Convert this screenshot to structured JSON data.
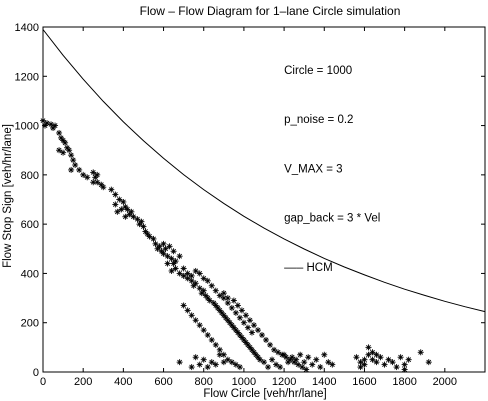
{
  "chart_data": {
    "type": "scatter",
    "title": "Flow – Flow Diagram for 1–lane Circle simulation",
    "xlabel": "Flow Circle [veh/hr/lane]",
    "ylabel": "Flow Stop Sign [veh/hr/lane]",
    "xlim": [
      0,
      2200
    ],
    "ylim": [
      0,
      1400
    ],
    "xticks": [
      0,
      200,
      400,
      600,
      800,
      1000,
      1200,
      1400,
      1600,
      1800,
      2000
    ],
    "yticks": [
      0,
      200,
      400,
      600,
      800,
      1000,
      1200,
      1400
    ],
    "grid": false,
    "annotations": [
      {
        "text": "Circle  = 1000",
        "x": 1200,
        "y": 1210
      },
      {
        "text": "p_noise = 0.2",
        "x": 1200,
        "y": 1010
      },
      {
        "text": "V_MAX   = 3",
        "x": 1200,
        "y": 810
      },
      {
        "text": "gap_back = 3 * Vel",
        "x": 1200,
        "y": 610
      },
      {
        "text": "––– HCM",
        "x": 1200,
        "y": 410
      }
    ],
    "series": [
      {
        "style": "curve",
        "comment_free": true,
        "x": [
          0,
          100,
          200,
          300,
          400,
          500,
          600,
          700,
          800,
          900,
          1000,
          1100,
          1200,
          1300,
          1400,
          1500,
          1600,
          1700,
          1800,
          1900,
          2000,
          2100,
          2200
        ],
        "y": [
          1390,
          1285,
          1188,
          1098,
          1015,
          938,
          867,
          801,
          740,
          684,
          632,
          584,
          540,
          499,
          461,
          426,
          394,
          364,
          336,
          311,
          287,
          265,
          245
        ]
      },
      {
        "style": "markers",
        "points": [
          [
            0,
            1020
          ],
          [
            10,
            1000
          ],
          [
            20,
            1010
          ],
          [
            40,
            1005
          ],
          [
            50,
            990
          ],
          [
            60,
            1000
          ],
          [
            80,
            970
          ],
          [
            90,
            950
          ],
          [
            100,
            940
          ],
          [
            110,
            930
          ],
          [
            120,
            910
          ],
          [
            80,
            900
          ],
          [
            100,
            890
          ],
          [
            130,
            900
          ],
          [
            140,
            880
          ],
          [
            150,
            860
          ],
          [
            160,
            840
          ],
          [
            140,
            820
          ],
          [
            180,
            820
          ],
          [
            200,
            800
          ],
          [
            220,
            790
          ],
          [
            250,
            810
          ],
          [
            260,
            790
          ],
          [
            270,
            770
          ],
          [
            290,
            760
          ],
          [
            300,
            750
          ],
          [
            250,
            770
          ],
          [
            270,
            800
          ],
          [
            340,
            740
          ],
          [
            360,
            720
          ],
          [
            380,
            700
          ],
          [
            400,
            690
          ],
          [
            410,
            670
          ],
          [
            420,
            660
          ],
          [
            430,
            640
          ],
          [
            450,
            630
          ],
          [
            470,
            620
          ],
          [
            480,
            600
          ],
          [
            410,
            630
          ],
          [
            440,
            650
          ],
          [
            360,
            680
          ],
          [
            370,
            650
          ],
          [
            390,
            660
          ],
          [
            490,
            610
          ],
          [
            500,
            590
          ],
          [
            510,
            570
          ],
          [
            520,
            560
          ],
          [
            530,
            550
          ],
          [
            550,
            540
          ],
          [
            560,
            520
          ],
          [
            570,
            500
          ],
          [
            580,
            510
          ],
          [
            590,
            490
          ],
          [
            600,
            480
          ],
          [
            620,
            470
          ],
          [
            640,
            460
          ],
          [
            650,
            440
          ],
          [
            660,
            420
          ],
          [
            600,
            520
          ],
          [
            610,
            500
          ],
          [
            630,
            510
          ],
          [
            650,
            490
          ],
          [
            680,
            470
          ],
          [
            620,
            440
          ],
          [
            640,
            410
          ],
          [
            660,
            450
          ],
          [
            680,
            400
          ],
          [
            700,
            390
          ],
          [
            720,
            380
          ],
          [
            740,
            370
          ],
          [
            750,
            350
          ],
          [
            760,
            360
          ],
          [
            780,
            340
          ],
          [
            790,
            320
          ],
          [
            800,
            330
          ],
          [
            810,
            310
          ],
          [
            820,
            300
          ],
          [
            830,
            290
          ],
          [
            850,
            280
          ],
          [
            860,
            270
          ],
          [
            870,
            260
          ],
          [
            880,
            250
          ],
          [
            890,
            240
          ],
          [
            900,
            230
          ],
          [
            910,
            220
          ],
          [
            920,
            210
          ],
          [
            930,
            200
          ],
          [
            940,
            190
          ],
          [
            950,
            180
          ],
          [
            960,
            170
          ],
          [
            970,
            160
          ],
          [
            980,
            150
          ],
          [
            990,
            140
          ],
          [
            1000,
            130
          ],
          [
            1010,
            120
          ],
          [
            1020,
            110
          ],
          [
            1030,
            100
          ],
          [
            1040,
            90
          ],
          [
            1050,
            80
          ],
          [
            1060,
            70
          ],
          [
            1070,
            60
          ],
          [
            1080,
            50
          ],
          [
            760,
            410
          ],
          [
            780,
            400
          ],
          [
            800,
            380
          ],
          [
            820,
            370
          ],
          [
            840,
            350
          ],
          [
            860,
            330
          ],
          [
            880,
            310
          ],
          [
            900,
            300
          ],
          [
            920,
            280
          ],
          [
            940,
            260
          ],
          [
            960,
            240
          ],
          [
            980,
            220
          ],
          [
            1000,
            200
          ],
          [
            1020,
            180
          ],
          [
            1040,
            160
          ],
          [
            700,
            420
          ],
          [
            720,
            400
          ],
          [
            740,
            390
          ],
          [
            900,
            320
          ],
          [
            920,
            300
          ],
          [
            950,
            290
          ],
          [
            970,
            270
          ],
          [
            990,
            250
          ],
          [
            1010,
            230
          ],
          [
            1030,
            210
          ],
          [
            1050,
            190
          ],
          [
            1070,
            170
          ],
          [
            1090,
            150
          ],
          [
            1110,
            130
          ],
          [
            1130,
            110
          ],
          [
            1150,
            90
          ],
          [
            1170,
            80
          ],
          [
            1190,
            70
          ],
          [
            1210,
            60
          ],
          [
            1230,
            50
          ],
          [
            1250,
            40
          ],
          [
            1270,
            30
          ],
          [
            1290,
            20
          ],
          [
            1310,
            10
          ],
          [
            700,
            270
          ],
          [
            720,
            250
          ],
          [
            740,
            230
          ],
          [
            760,
            210
          ],
          [
            780,
            190
          ],
          [
            800,
            170
          ],
          [
            820,
            150
          ],
          [
            840,
            130
          ],
          [
            860,
            110
          ],
          [
            880,
            90
          ],
          [
            900,
            70
          ],
          [
            920,
            50
          ],
          [
            940,
            40
          ],
          [
            960,
            30
          ],
          [
            980,
            20
          ],
          [
            680,
            40
          ],
          [
            740,
            20
          ],
          [
            760,
            60
          ],
          [
            780,
            30
          ],
          [
            800,
            50
          ],
          [
            820,
            20
          ],
          [
            840,
            40
          ],
          [
            860,
            30
          ],
          [
            880,
            70
          ],
          [
            900,
            40
          ],
          [
            1100,
            40
          ],
          [
            1120,
            20
          ],
          [
            1140,
            50
          ],
          [
            1160,
            30
          ],
          [
            1180,
            20
          ],
          [
            1200,
            70
          ],
          [
            1220,
            40
          ],
          [
            1240,
            60
          ],
          [
            1260,
            50
          ],
          [
            1280,
            70
          ],
          [
            1300,
            40
          ],
          [
            1320,
            60
          ],
          [
            1340,
            30
          ],
          [
            1360,
            50
          ],
          [
            1380,
            20
          ],
          [
            1400,
            70
          ],
          [
            1420,
            40
          ],
          [
            1440,
            30
          ],
          [
            1560,
            60
          ],
          [
            1580,
            40
          ],
          [
            1600,
            50
          ],
          [
            1620,
            70
          ],
          [
            1640,
            50
          ],
          [
            1660,
            40
          ],
          [
            1680,
            60
          ],
          [
            1700,
            30
          ],
          [
            1720,
            50
          ],
          [
            1740,
            40
          ],
          [
            1760,
            20
          ],
          [
            1780,
            60
          ],
          [
            1800,
            30
          ],
          [
            1820,
            50
          ],
          [
            1620,
            100
          ],
          [
            1640,
            80
          ],
          [
            1660,
            70
          ],
          [
            1600,
            30
          ],
          [
            1580,
            20
          ],
          [
            1880,
            80
          ],
          [
            1920,
            40
          ],
          [
            1800,
            10
          ]
        ]
      }
    ]
  }
}
